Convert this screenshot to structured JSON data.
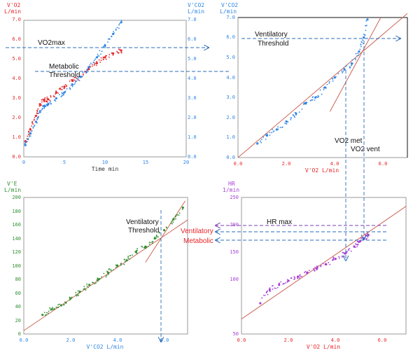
{
  "colors": {
    "red": "#e8262a",
    "blue": "#2f86e6",
    "green": "#2f8f2f",
    "purple": "#a63fd6",
    "fit": "#cc6655",
    "axis": "#999999",
    "dash": "#2b6cb8",
    "black": "#111111"
  },
  "chart_data": [
    {
      "id": "p1",
      "type": "scatter",
      "title": "",
      "xlabel": "Time  min",
      "ylabel_left": [
        "V'O2",
        "L/min"
      ],
      "ylabel_right": [
        "V'CO2",
        "L/min"
      ],
      "xlim": [
        0,
        20
      ],
      "ylim": [
        0,
        7
      ],
      "ylim_right": [
        0,
        7
      ],
      "xticks": [
        "0",
        "5",
        "10",
        "15",
        "20"
      ],
      "yticks": [
        "0.0",
        "1.0",
        "2.0",
        "3.0",
        "4.0",
        "5.0",
        "6.0",
        "7.0"
      ],
      "yticks_right": [
        "0.0",
        "1.0",
        "2.0",
        "3.0",
        "4.0",
        "5.0",
        "6.0",
        "7.0"
      ],
      "series": [
        {
          "name": "V'O2",
          "color": "red",
          "x": [
            0.2,
            0.8,
            1.5,
            2.0,
            2.5,
            3.0,
            4.0,
            5.0,
            6.0,
            7.0,
            8.0,
            9.0,
            10.0,
            11.0,
            12.0
          ],
          "y": [
            0.8,
            1.4,
            2.1,
            2.7,
            2.9,
            2.95,
            3.3,
            3.6,
            3.9,
            4.1,
            4.5,
            4.8,
            5.1,
            5.3,
            5.45
          ]
        },
        {
          "name": "V'CO2",
          "color": "blue",
          "x": [
            0.2,
            0.8,
            1.5,
            2.0,
            2.5,
            3.0,
            4.0,
            5.0,
            6.0,
            7.0,
            8.0,
            9.0,
            10.0,
            11.0,
            12.0
          ],
          "y": [
            0.6,
            1.2,
            1.8,
            2.3,
            2.6,
            2.7,
            3.0,
            3.3,
            3.7,
            4.1,
            4.6,
            5.1,
            5.7,
            6.3,
            6.9
          ]
        }
      ],
      "annotations": {
        "vo2max": "VO2max",
        "met_threshold": [
          "Metabolic",
          "Threshold"
        ]
      },
      "reference_lines": {
        "vo2max": 5.5,
        "threshold": 4.35
      }
    },
    {
      "id": "p2",
      "type": "scatter",
      "xlabel": "V'O2  L/min",
      "ylabel": [
        "V'CO2",
        "L/min"
      ],
      "xlim": [
        0,
        7
      ],
      "ylim": [
        0,
        7
      ],
      "xticks": [
        "0.0",
        "2.0",
        "4.0",
        "6.0"
      ],
      "yticks": [
        "0.0",
        "1.0",
        "2.0",
        "3.0",
        "4.0",
        "5.0",
        "6.0",
        "7.0"
      ],
      "series": [
        {
          "name": "",
          "color": "blue",
          "x": [
            0.8,
            1.2,
            1.6,
            2.0,
            2.4,
            2.8,
            3.2,
            3.6,
            4.0,
            4.4,
            4.7,
            5.0,
            5.2,
            5.35
          ],
          "y": [
            0.7,
            1.1,
            1.4,
            1.8,
            2.2,
            2.7,
            3.0,
            3.5,
            4.0,
            4.4,
            4.7,
            5.3,
            6.0,
            6.9
          ]
        }
      ],
      "fits": [
        {
          "x": [
            0.0,
            7.0
          ],
          "y": [
            0.0,
            7.2
          ]
        },
        {
          "x": [
            3.8,
            5.9
          ],
          "y": [
            2.3,
            7.0
          ]
        }
      ],
      "annotations": {
        "vent_threshold": [
          "Ventilatory",
          "Threshold"
        ],
        "vo2_met": "VO2 met",
        "vo2_vent": "VO2 vent"
      },
      "reference_lines": {
        "vo2_met": 4.4,
        "vo2_vent": 5.2
      }
    },
    {
      "id": "p3",
      "type": "scatter",
      "xlabel": "V'CO2  L/min",
      "ylabel": [
        "V'E",
        "L/min"
      ],
      "xlim": [
        0,
        7
      ],
      "ylim": [
        0,
        200
      ],
      "xticks": [
        "0.0",
        "2.0",
        "4.0",
        "6.0"
      ],
      "yticks": [
        "0",
        "20",
        "40",
        "60",
        "80",
        "100",
        "120",
        "140",
        "160",
        "180",
        "200"
      ],
      "series": [
        {
          "name": "",
          "color": "green",
          "x": [
            0.8,
            1.2,
            1.6,
            2.0,
            2.4,
            2.8,
            3.2,
            3.6,
            4.0,
            4.4,
            4.8,
            5.2,
            5.6,
            6.0,
            6.4,
            6.8
          ],
          "y": [
            28,
            36,
            42,
            52,
            62,
            72,
            80,
            90,
            100,
            108,
            120,
            128,
            140,
            152,
            168,
            185
          ]
        }
      ],
      "fits": [
        {
          "x": [
            0.0,
            7.0
          ],
          "y": [
            5.0,
            167.0
          ]
        },
        {
          "x": [
            5.2,
            6.9
          ],
          "y": [
            105.0,
            195.0
          ]
        }
      ],
      "annotations": {
        "vent_threshold": [
          "Ventilatory",
          "Threshold"
        ]
      },
      "reference_lines": {
        "vco2": 5.85
      }
    },
    {
      "id": "p4",
      "type": "scatter",
      "xlabel": "V'O2  L/min",
      "ylabel": [
        "HR",
        "1/min"
      ],
      "xlim": [
        0,
        7
      ],
      "ylim": [
        50,
        250
      ],
      "xticks": [
        "0.0",
        "2.0",
        "4.0",
        "6.0"
      ],
      "yticks": [
        "50",
        "100",
        "150",
        "200",
        "250"
      ],
      "series": [
        {
          "name": "",
          "color": "purple",
          "x": [
            0.8,
            1.2,
            1.6,
            2.0,
            2.4,
            2.8,
            3.2,
            3.6,
            4.0,
            4.4,
            4.8,
            5.0,
            5.2,
            5.4
          ],
          "y": [
            95,
            115,
            122,
            128,
            134,
            140,
            146,
            152,
            160,
            168,
            178,
            185,
            190,
            195
          ]
        }
      ],
      "fits": [
        {
          "x": [
            0.0,
            7.0
          ],
          "y": [
            72.0,
            237.0
          ]
        }
      ],
      "annotations": {
        "hr_max": "HR max"
      },
      "reference_lines": {
        "hr_max": 197,
        "vent": 186,
        "met": 172
      }
    }
  ],
  "side_labels": {
    "ventilatory": "Ventilatory",
    "metabolic": "Metabolic"
  }
}
